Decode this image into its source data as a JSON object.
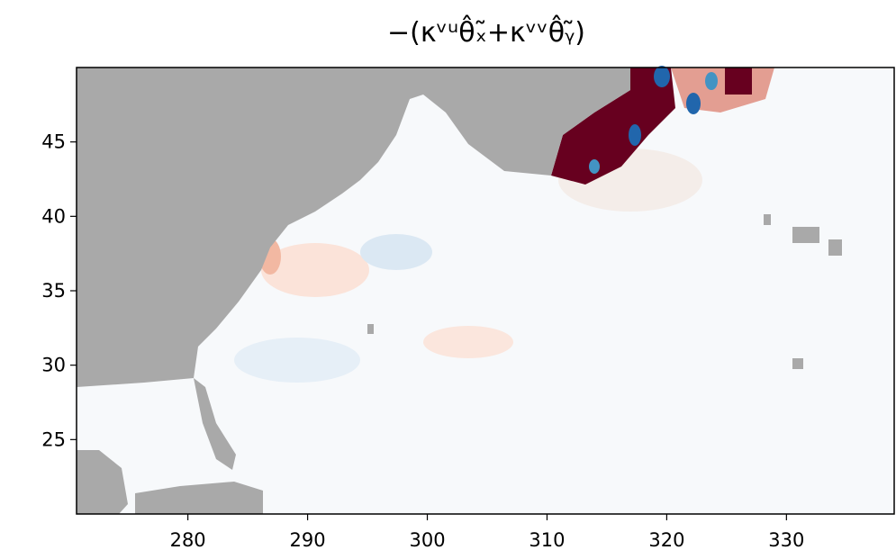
{
  "chart_data": {
    "type": "heatmap",
    "title": "−(κᵛᵘθ̂ₓ̃+κᵛᵛθ̂ᵧ̃)",
    "xlim": [
      270.7,
      339
    ],
    "ylim": [
      20,
      50
    ],
    "xticks": [
      280,
      290,
      300,
      310,
      320,
      330
    ],
    "yticks": [
      25,
      30,
      35,
      40,
      45
    ],
    "land_color": "#a9a9a9",
    "colormap": "RdBu_r"
  }
}
